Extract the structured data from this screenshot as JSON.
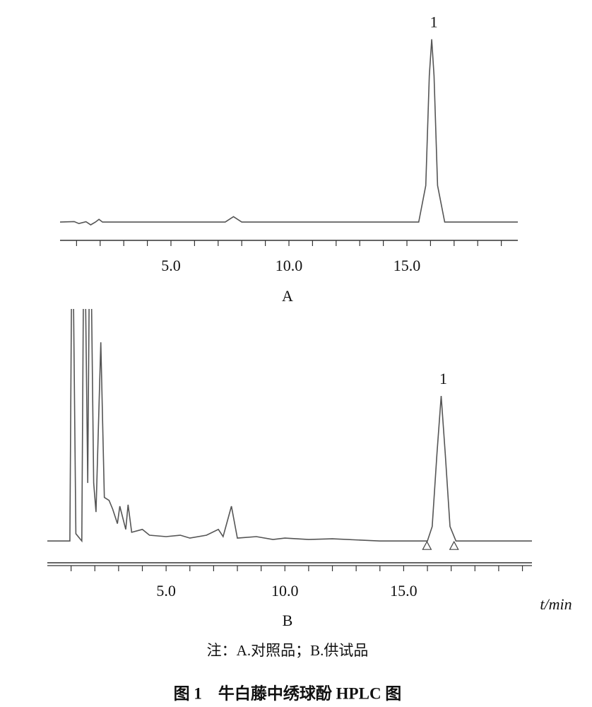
{
  "chart_data": [
    {
      "type": "line",
      "panel_label": "A",
      "color": "#555555",
      "x": [
        0.3,
        0.9,
        1.1,
        1.4,
        1.6,
        1.8,
        1.95,
        2.1,
        7.3,
        7.65,
        8.0,
        15.5,
        15.8,
        15.95,
        16.05,
        16.15,
        16.3,
        16.6,
        19.7
      ],
      "values": [
        0,
        0.3,
        -0.8,
        0.2,
        -1.5,
        0,
        1.5,
        0,
        0,
        3,
        0,
        0,
        20,
        80,
        100,
        80,
        20,
        0,
        0
      ],
      "xlim": [
        0.3,
        19.7
      ],
      "ylim": [
        -10,
        106
      ],
      "xticks": [
        {
          "value": 5,
          "label": "5.0"
        },
        {
          "value": 10,
          "label": "10.0"
        },
        {
          "value": 15,
          "label": "15.0"
        }
      ],
      "minor_xticks": [
        1,
        2,
        3,
        4,
        6,
        7,
        8,
        9,
        11,
        12,
        13,
        14,
        16,
        17,
        18,
        19
      ],
      "annotations": [
        {
          "text": "1",
          "x": 16.05,
          "y": 100
        }
      ]
    },
    {
      "type": "line",
      "panel_label": "B",
      "color": "#555555",
      "x_label": "t/min",
      "x": [
        0,
        0.95,
        1.05,
        1.2,
        1.45,
        1.55,
        1.7,
        1.8,
        1.95,
        2.05,
        2.25,
        2.4,
        2.6,
        2.75,
        2.95,
        3.05,
        3.3,
        3.4,
        3.55,
        4.0,
        4.3,
        5.0,
        5.6,
        6.0,
        6.7,
        7.2,
        7.4,
        7.75,
        8.0,
        8.8,
        9.5,
        10.0,
        11.0,
        12.0,
        14.0,
        16.0,
        16.2,
        16.4,
        16.58,
        16.75,
        16.95,
        17.2,
        20.4
      ],
      "values": [
        0,
        0,
        250,
        5,
        0,
        250,
        40,
        250,
        40,
        20,
        137,
        30,
        28,
        22,
        12,
        24,
        8,
        25,
        6,
        8,
        4,
        3,
        4,
        2,
        4,
        8,
        3,
        24,
        2,
        3,
        1,
        2,
        1,
        1.5,
        0,
        0,
        10,
        60,
        100,
        60,
        10,
        0,
        0
      ],
      "xlim": [
        0,
        20.4
      ],
      "ylim": [
        -16,
        160
      ],
      "xticks": [
        {
          "value": 5,
          "label": "5.0"
        },
        {
          "value": 10,
          "label": "10.0"
        },
        {
          "value": 15,
          "label": "15.0"
        }
      ],
      "minor_xticks": [
        1,
        2,
        3,
        4,
        6,
        7,
        8,
        9,
        11,
        12,
        13,
        14,
        16,
        17,
        18,
        19,
        20
      ],
      "integration_marks": [
        15.98,
        17.12
      ],
      "annotations": [
        {
          "text": "1",
          "x": 16.58,
          "y": 100
        }
      ]
    }
  ],
  "note": "注：A.对照品；B.供试品",
  "caption": "图 1　牛白藤中绣球酚 HPLC 图"
}
